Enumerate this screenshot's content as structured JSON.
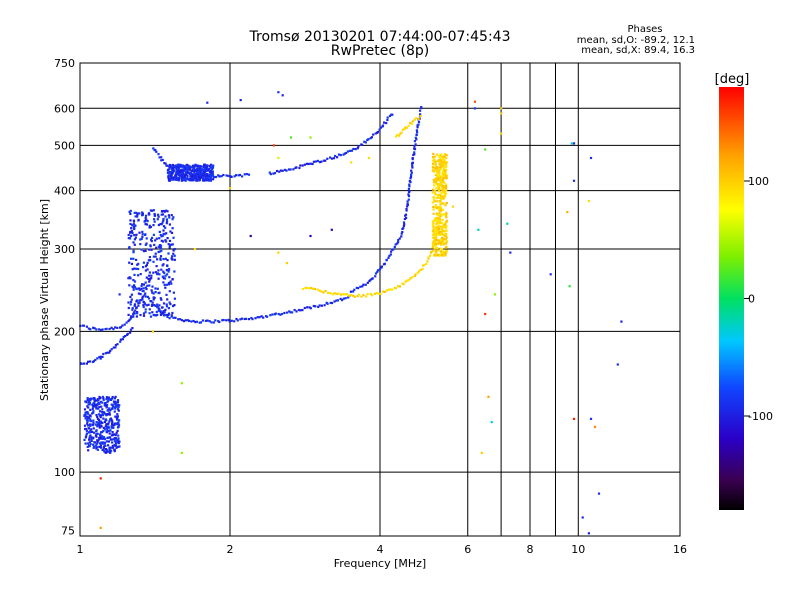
{
  "chart_data": {
    "type": "scatter",
    "title": "Tromsø 20130201 07:44:00-07:45:43",
    "subtitle": "RwPretec (8p)",
    "xlabel": "Frequency [MHz]",
    "ylabel": "Stationary phase Virtual Height [km]",
    "xscale": "log",
    "yscale": "log",
    "xlim": [
      1,
      16
    ],
    "ylim": [
      73,
      750
    ],
    "x_ticks": [
      1,
      2,
      4,
      6,
      8,
      10,
      16
    ],
    "y_ticks": [
      75,
      100,
      200,
      300,
      400,
      500,
      600,
      750
    ],
    "grid_x": [
      2,
      4,
      6,
      7,
      8,
      9,
      10
    ],
    "grid_y": [
      100,
      200,
      300,
      400,
      500,
      600
    ],
    "grid": true,
    "colorbar": {
      "label": "[deg]",
      "range": [
        -180,
        180
      ],
      "ticks": [
        100,
        0,
        -100
      ]
    },
    "stats": {
      "heading": "Phases",
      "line1": "mean, sd,O: -89.2, 12.1",
      "line2": "mean, sd,X:  89.4, 16.3"
    },
    "series": [
      {
        "mode": "O",
        "phase_deg": -95,
        "traces": [
          {
            "points": [
              [
                1.0,
                206
              ],
              [
                1.05,
                203
              ],
              [
                1.1,
                202
              ],
              [
                1.2,
                204
              ],
              [
                1.25,
                210
              ],
              [
                1.3,
                225
              ],
              [
                1.35,
                240
              ],
              [
                1.4,
                230
              ],
              [
                1.45,
                222
              ],
              [
                1.5,
                215
              ],
              [
                1.6,
                212
              ],
              [
                1.7,
                210
              ],
              [
                1.8,
                210
              ],
              [
                2.0,
                211
              ],
              [
                2.2,
                213
              ],
              [
                2.5,
                218
              ],
              [
                2.8,
                223
              ],
              [
                3.0,
                227
              ],
              [
                3.3,
                233
              ],
              [
                3.5,
                238
              ]
            ]
          },
          {
            "points": [
              [
                1.0,
                170
              ],
              [
                1.05,
                172
              ],
              [
                1.1,
                176
              ],
              [
                1.15,
                182
              ],
              [
                1.2,
                190
              ],
              [
                1.25,
                198
              ],
              [
                1.28,
                204
              ]
            ]
          },
          {
            "points": [
              [
                1.4,
                495
              ],
              [
                1.45,
                470
              ],
              [
                1.5,
                450
              ],
              [
                1.6,
                438
              ],
              [
                1.7,
                432
              ],
              [
                1.8,
                430
              ],
              [
                2.0,
                430
              ],
              [
                2.2,
                433
              ]
            ]
          },
          {
            "points": [
              [
                2.4,
                436
              ],
              [
                2.6,
                443
              ],
              [
                2.8,
                452
              ],
              [
                3.0,
                462
              ],
              [
                3.2,
                470
              ],
              [
                3.4,
                480
              ],
              [
                3.6,
                495
              ],
              [
                3.8,
                515
              ],
              [
                4.0,
                540
              ],
              [
                4.15,
                570
              ],
              [
                4.25,
                590
              ]
            ]
          },
          {
            "points": [
              [
                3.5,
                243
              ],
              [
                3.8,
                255
              ],
              [
                4.0,
                272
              ],
              [
                4.2,
                292
              ],
              [
                4.4,
                320
              ],
              [
                4.5,
                350
              ],
              [
                4.55,
                380
              ],
              [
                4.6,
                420
              ],
              [
                4.65,
                460
              ],
              [
                4.7,
                500
              ],
              [
                4.75,
                540
              ],
              [
                4.8,
                580
              ],
              [
                4.85,
                610
              ]
            ]
          }
        ],
        "clusters": [
          {
            "x": [
              1.25,
              1.55
            ],
            "y": [
              215,
              365
            ]
          },
          {
            "x": [
              1.02,
              1.2
            ],
            "y": [
              110,
              145
            ]
          },
          {
            "x": [
              1.5,
              1.85
            ],
            "y": [
              420,
              455
            ]
          }
        ],
        "isolated": [
          [
            1.8,
            617
          ],
          [
            2.1,
            625
          ],
          [
            2.5,
            650
          ],
          [
            2.55,
            640
          ],
          [
            1.2,
            240
          ],
          [
            1.25,
            260
          ],
          [
            1.1,
            175
          ],
          [
            6.2,
            600
          ],
          [
            9.8,
            505
          ],
          [
            12.2,
            210
          ],
          [
            12.0,
            170
          ],
          [
            7.3,
            295
          ],
          [
            8.8,
            265
          ],
          [
            9.8,
            420
          ],
          [
            10.6,
            470
          ],
          [
            10.2,
            80
          ],
          [
            10.5,
            74
          ],
          [
            11.0,
            90
          ],
          [
            10.6,
            130
          ]
        ]
      },
      {
        "mode": "X",
        "phase_deg": 95,
        "traces": [
          {
            "points": [
              [
                2.8,
                248
              ],
              [
                3.0,
                245
              ],
              [
                3.3,
                240
              ],
              [
                3.6,
                238
              ],
              [
                3.9,
                240
              ],
              [
                4.2,
                245
              ],
              [
                4.5,
                255
              ],
              [
                4.8,
                268
              ],
              [
                5.0,
                285
              ],
              [
                5.15,
                310
              ],
              [
                5.25,
                340
              ],
              [
                5.3,
                380
              ],
              [
                5.35,
                420
              ],
              [
                5.38,
                470
              ]
            ]
          },
          {
            "points": [
              [
                4.3,
                520
              ],
              [
                4.5,
                545
              ],
              [
                4.7,
                565
              ],
              [
                4.85,
                580
              ]
            ]
          }
        ],
        "clusters": [
          {
            "x": [
              5.1,
              5.45
            ],
            "y": [
              290,
              480
            ]
          }
        ],
        "isolated": [
          [
            2.5,
            295
          ],
          [
            2.6,
            280
          ],
          [
            3.5,
            460
          ],
          [
            3.8,
            470
          ],
          [
            1.7,
            300
          ],
          [
            5.6,
            370
          ],
          [
            10.5,
            380
          ],
          [
            7.0,
            585
          ],
          [
            7.0,
            600
          ],
          [
            7.0,
            530
          ],
          [
            2.0,
            405
          ]
        ]
      },
      {
        "mode": "mixed",
        "traces": [],
        "clusters": [],
        "isolated": [
          {
            "x": 6.2,
            "y": 620,
            "phase_deg": 150
          },
          {
            "x": 6.5,
            "y": 218,
            "phase_deg": 160
          },
          {
            "x": 6.6,
            "y": 145,
            "phase_deg": 120
          },
          {
            "x": 6.7,
            "y": 128,
            "phase_deg": -30
          },
          {
            "x": 6.4,
            "y": 110,
            "phase_deg": 100
          },
          {
            "x": 6.8,
            "y": 240,
            "phase_deg": 40
          },
          {
            "x": 6.5,
            "y": 490,
            "phase_deg": 20
          },
          {
            "x": 2.5,
            "y": 470,
            "phase_deg": 60
          },
          {
            "x": 2.9,
            "y": 520,
            "phase_deg": 40
          },
          {
            "x": 2.65,
            "y": 520,
            "phase_deg": 20
          },
          {
            "x": 1.6,
            "y": 155,
            "phase_deg": 40
          },
          {
            "x": 1.6,
            "y": 110,
            "phase_deg": 40
          },
          {
            "x": 1.4,
            "y": 200,
            "phase_deg": 100
          },
          {
            "x": 1.1,
            "y": 97,
            "phase_deg": 170
          },
          {
            "x": 1.1,
            "y": 76,
            "phase_deg": 120
          },
          {
            "x": 7.2,
            "y": 340,
            "phase_deg": -10
          },
          {
            "x": 6.3,
            "y": 330,
            "phase_deg": -20
          },
          {
            "x": 9.5,
            "y": 360,
            "phase_deg": 110
          },
          {
            "x": 9.6,
            "y": 250,
            "phase_deg": 10
          },
          {
            "x": 9.7,
            "y": 505,
            "phase_deg": -20
          },
          {
            "x": 10.8,
            "y": 125,
            "phase_deg": 130
          },
          {
            "x": 9.8,
            "y": 130,
            "phase_deg": 170
          },
          {
            "x": 2.45,
            "y": 500,
            "phase_deg": 160
          },
          {
            "x": 2.2,
            "y": 320,
            "phase_deg": -140
          },
          {
            "x": 3.2,
            "y": 330,
            "phase_deg": -130
          },
          {
            "x": 2.9,
            "y": 320,
            "phase_deg": -120
          }
        ]
      }
    ]
  }
}
